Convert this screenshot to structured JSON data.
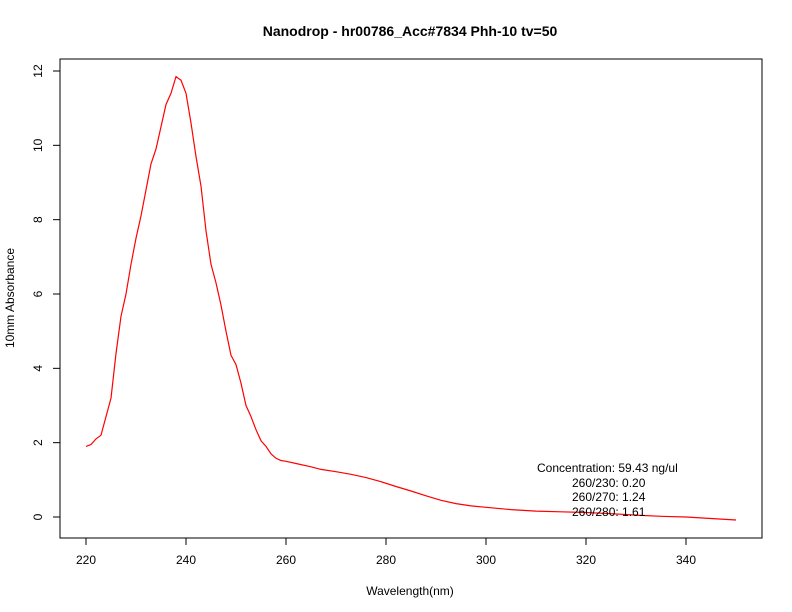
{
  "chart_data": {
    "type": "line",
    "title": "Nanodrop - hr00786_Acc#7834 Phh-10 tv=50",
    "xlabel": "Wavelength(nm)",
    "ylabel": "10mm Absorbance",
    "xlim": [
      220,
      350
    ],
    "ylim": [
      -0.5,
      12.2
    ],
    "xticks": [
      "220",
      "240",
      "260",
      "280",
      "300",
      "320",
      "340"
    ],
    "yticks": [
      "0",
      "2",
      "4",
      "6",
      "8",
      "10",
      "12"
    ],
    "grid": false,
    "series": [
      {
        "color": "#ff0000",
        "x": [
          220,
          221,
          222,
          223,
          224,
          225,
          226,
          227,
          228,
          229,
          230,
          231,
          232,
          233,
          234,
          235,
          236,
          237,
          238,
          239,
          240,
          241,
          242,
          243,
          244,
          245,
          246,
          247,
          248,
          249,
          250,
          251,
          252,
          253,
          254,
          255,
          256,
          257,
          258,
          259,
          260,
          262,
          265,
          267,
          270,
          273,
          276,
          279,
          282,
          285,
          288,
          291,
          294,
          297,
          300,
          305,
          310,
          315,
          320,
          325,
          330,
          335,
          340,
          345,
          350
        ],
        "y": [
          1.9,
          1.95,
          2.1,
          2.2,
          2.7,
          3.2,
          4.4,
          5.4,
          6.0,
          6.8,
          7.5,
          8.1,
          8.8,
          9.5,
          9.9,
          10.5,
          11.1,
          11.4,
          11.85,
          11.75,
          11.4,
          10.6,
          9.7,
          8.9,
          7.7,
          6.8,
          6.3,
          5.7,
          5.0,
          4.35,
          4.1,
          3.6,
          3.0,
          2.7,
          2.35,
          2.05,
          1.9,
          1.7,
          1.58,
          1.52,
          1.5,
          1.44,
          1.35,
          1.28,
          1.22,
          1.15,
          1.06,
          0.95,
          0.82,
          0.7,
          0.57,
          0.45,
          0.36,
          0.3,
          0.26,
          0.2,
          0.16,
          0.14,
          0.12,
          0.09,
          0.05,
          0.02,
          0.0,
          -0.04,
          -0.08
        ]
      }
    ],
    "annotations": [
      "Concentration: 59.43 ng/ul",
      "260/230: 0.20",
      "260/270: 1.24",
      "260/280: 1.61"
    ]
  }
}
